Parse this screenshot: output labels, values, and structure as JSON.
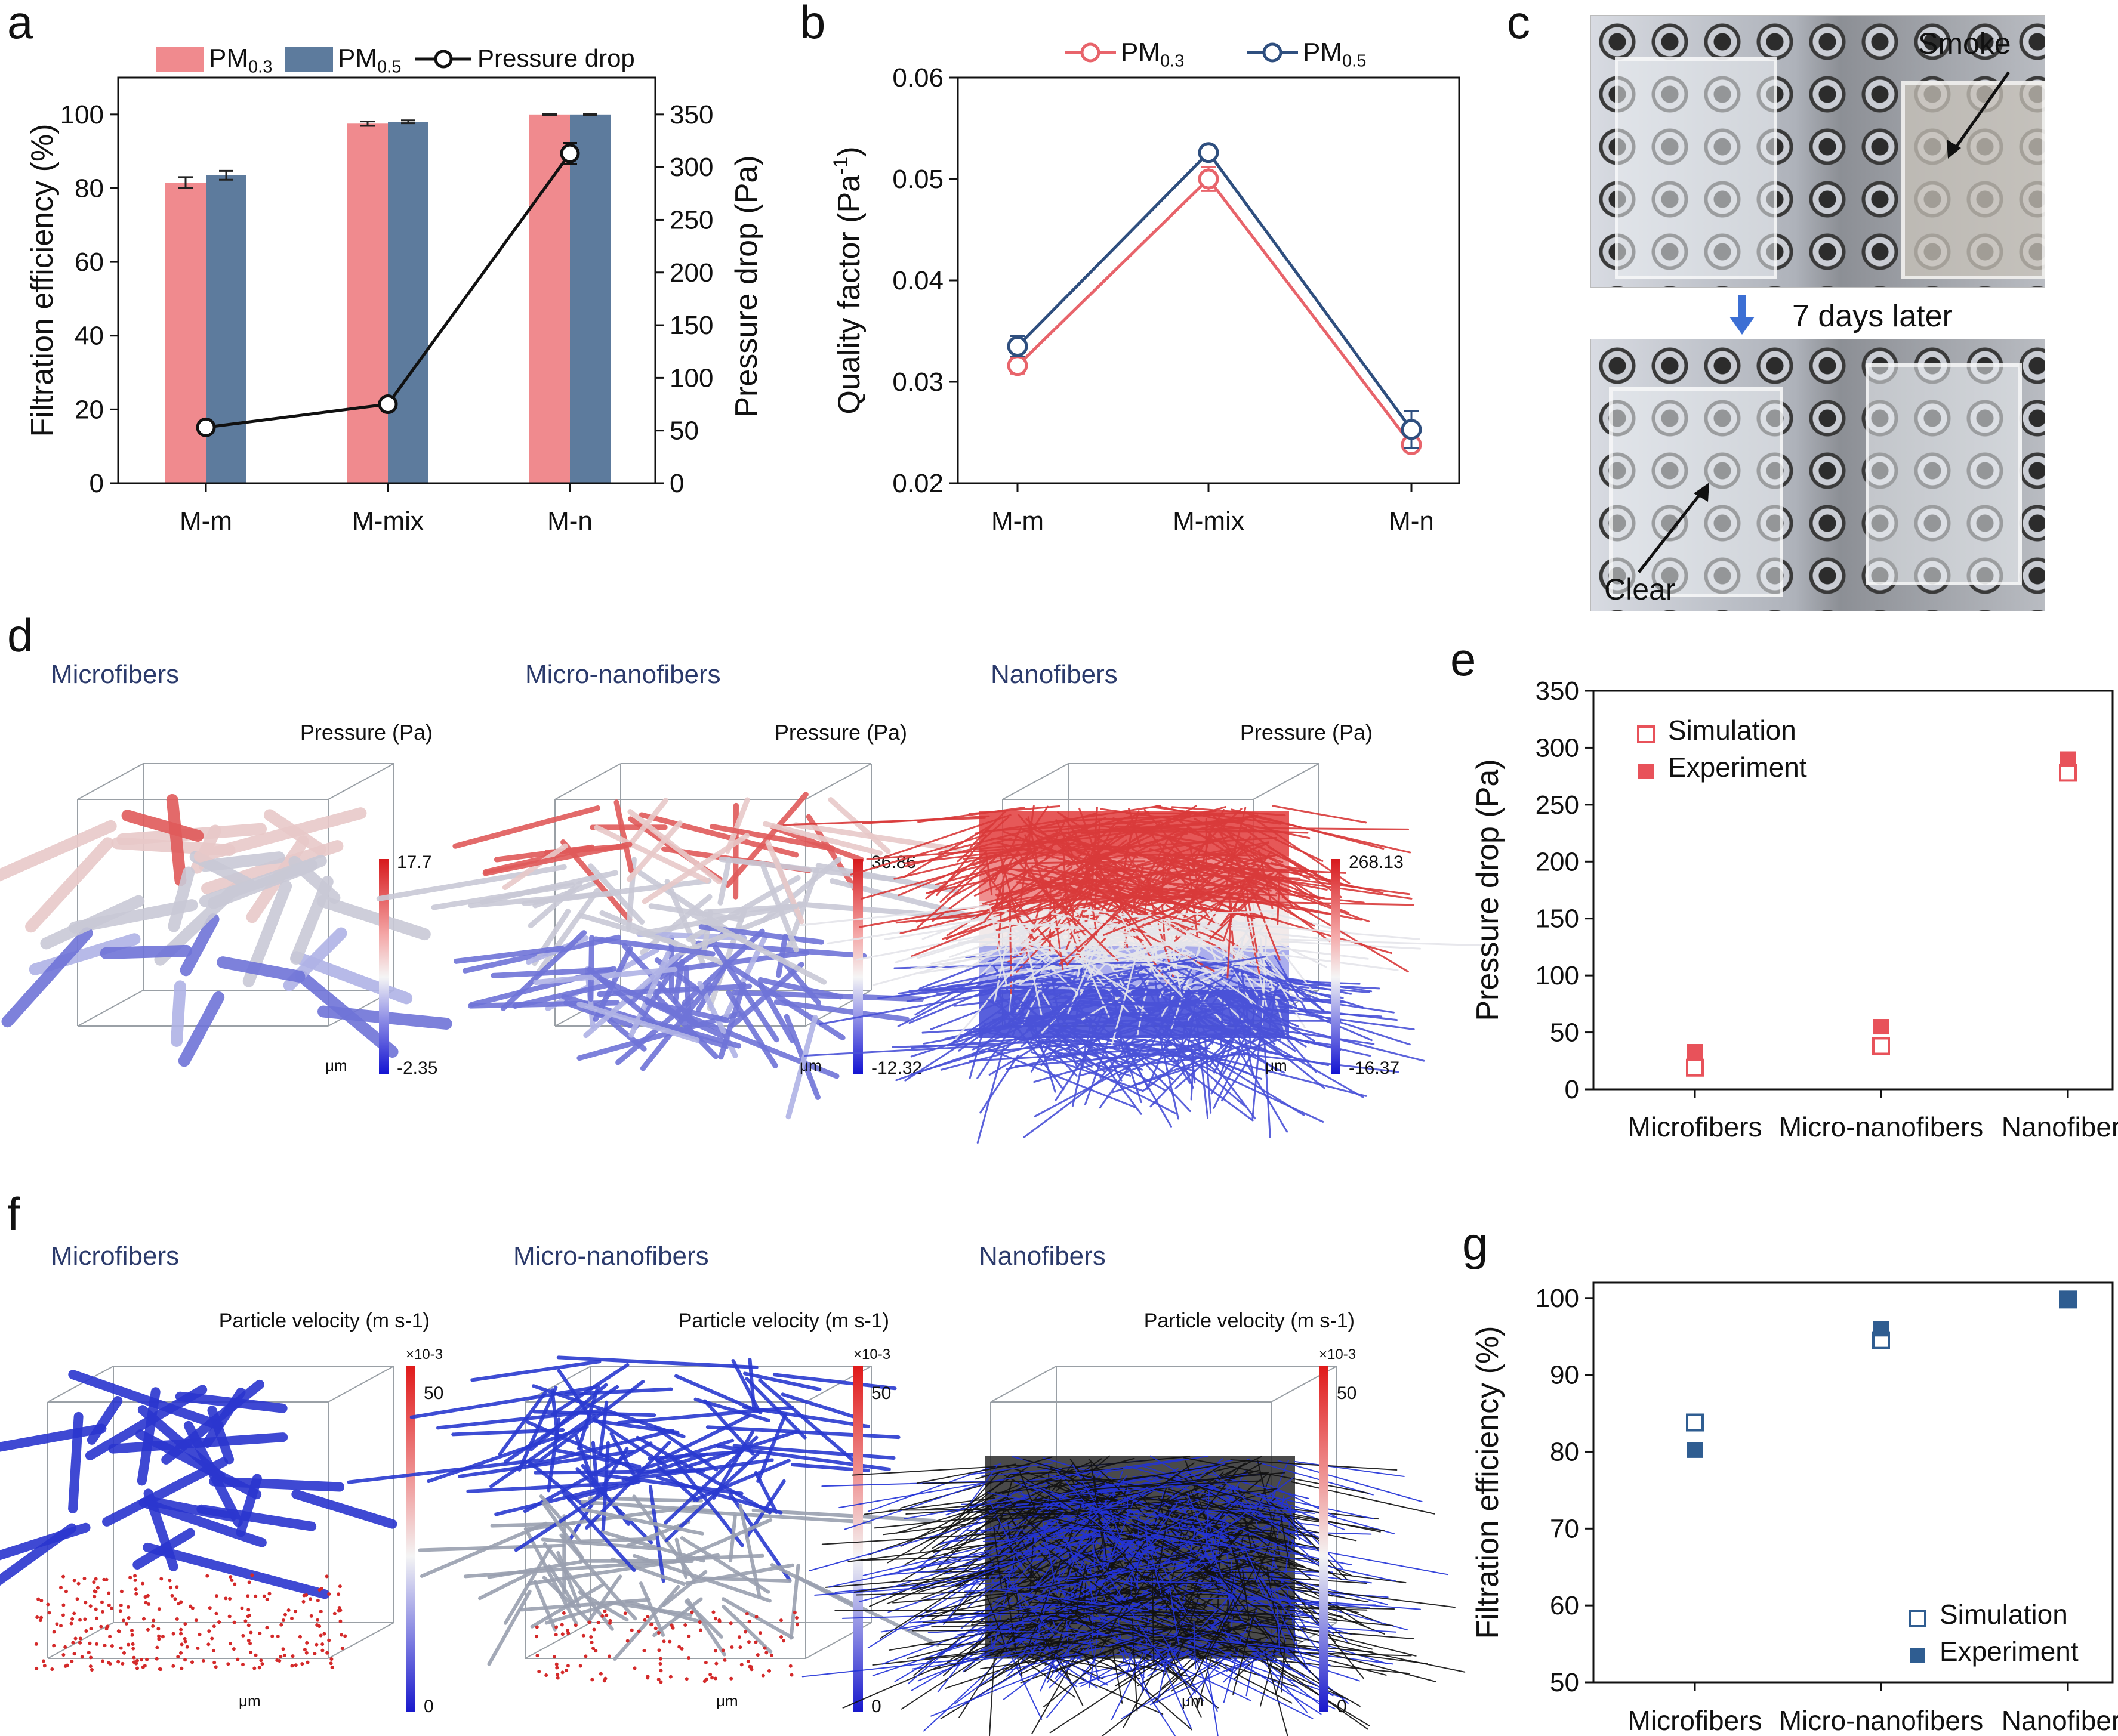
{
  "panel_letters": {
    "a": "a",
    "b": "b",
    "c": "c",
    "d": "d",
    "e": "e",
    "f": "f",
    "g": "g"
  },
  "panel_a": {
    "legend": {
      "pm03_base": "PM",
      "pm03_sub": "0.3",
      "pm05_base": "PM",
      "pm05_sub": "0.5",
      "pressure": "Pressure drop"
    },
    "ylabel_left": "Filtration efficiency (%)",
    "ylabel_right": "Pressure drop (Pa)"
  },
  "panel_b": {
    "legend": {
      "pm03_base": "PM",
      "pm03_sub": "0.3",
      "pm05_base": "PM",
      "pm05_sub": "0.5"
    },
    "ylabel_base": "Quality factor (Pa",
    "ylabel_sup": "-1",
    "ylabel_end": ")"
  },
  "panel_c": {
    "smoke_label": "Smoke",
    "clear_label": "Clear",
    "later_label": "7 days later"
  },
  "panel_d": {
    "titles": [
      "Microfibers",
      "Micro-nanofibers",
      "Nanofibers"
    ],
    "colorbar_title": "Pressure (Pa)",
    "colorbar_max": [
      "17.7",
      "36.86",
      "268.13"
    ],
    "colorbar_min": [
      "-2.35",
      "-12.32",
      "-16.37"
    ],
    "unit": "μm"
  },
  "panel_e": {
    "ylabel": "Pressure drop (Pa)",
    "legend": {
      "simulation": "Simulation",
      "experiment": "Experiment"
    }
  },
  "panel_f": {
    "titles": [
      "Microfibers",
      "Micro-nanofibers",
      "Nanofibers"
    ],
    "colorbar_title": "Particle velocity (m s-1)",
    "colorbar_scale": "×10-3",
    "colorbar_max": "50",
    "colorbar_min": "0",
    "unit": "μm"
  },
  "panel_g": {
    "ylabel": "Filtration efficiency (%)",
    "legend": {
      "simulation": "Simulation",
      "experiment": "Experiment"
    }
  },
  "colors": {
    "pm03": "#f08a8e",
    "pm05": "#5d7b9d",
    "pm03_line": "#e8646b",
    "pm05_line": "#2f4f7f",
    "sim_red": "#e8525a",
    "sim_blue": "#2f5d91",
    "axis": "#111111"
  },
  "chart_data": [
    {
      "id": "a",
      "type": "bar",
      "categories": [
        "M-m",
        "M-mix",
        "M-n"
      ],
      "series": [
        {
          "name": "PM0.3",
          "values": [
            81.5,
            97.5,
            100
          ],
          "errors": [
            1.5,
            0.6,
            0.2
          ],
          "axis": "left"
        },
        {
          "name": "PM0.5",
          "values": [
            83.5,
            98,
            100
          ],
          "errors": [
            1.2,
            0.4,
            0.2
          ],
          "axis": "left"
        },
        {
          "name": "Pressure drop",
          "type": "line",
          "values": [
            53,
            75,
            313
          ],
          "errors": [
            4,
            3,
            10
          ],
          "axis": "right"
        }
      ],
      "ylim_left": [
        0,
        110
      ],
      "yticks_left": [
        0,
        20,
        40,
        60,
        80,
        100
      ],
      "ylim_right": [
        0,
        385
      ],
      "yticks_right": [
        0,
        50,
        100,
        150,
        200,
        250,
        300,
        350
      ]
    },
    {
      "id": "b",
      "type": "line",
      "categories": [
        "M-m",
        "M-mix",
        "M-n"
      ],
      "series": [
        {
          "name": "PM0.3",
          "values": [
            0.0316,
            0.05,
            0.0238
          ],
          "errors": [
            0.0008,
            0.0012,
            0.0004
          ]
        },
        {
          "name": "PM0.5",
          "values": [
            0.0335,
            0.0526,
            0.0253
          ],
          "errors": [
            0.001,
            0.0006,
            0.0018
          ]
        }
      ],
      "ylim": [
        0.02,
        0.06
      ],
      "yticks": [
        0.02,
        0.03,
        0.04,
        0.05,
        0.06
      ]
    },
    {
      "id": "e",
      "type": "scatter",
      "categories": [
        "Microfibers",
        "Micro-nanofibers",
        "Nanofibers"
      ],
      "series": [
        {
          "name": "Simulation",
          "values": [
            19,
            38,
            278
          ]
        },
        {
          "name": "Experiment",
          "values": [
            33,
            55,
            290
          ]
        }
      ],
      "ylim": [
        0,
        350
      ],
      "yticks": [
        0,
        50,
        100,
        150,
        200,
        250,
        300,
        350
      ]
    },
    {
      "id": "g",
      "type": "scatter",
      "categories": [
        "Microfibers",
        "Micro-nanofibers",
        "Nanofibers"
      ],
      "series": [
        {
          "name": "Simulation",
          "values": [
            83.8,
            94.5,
            99.8
          ]
        },
        {
          "name": "Experiment",
          "values": [
            80.2,
            96.0,
            99.9
          ]
        }
      ],
      "ylim": [
        50,
        102
      ],
      "yticks": [
        50,
        60,
        70,
        80,
        90,
        100
      ]
    }
  ]
}
